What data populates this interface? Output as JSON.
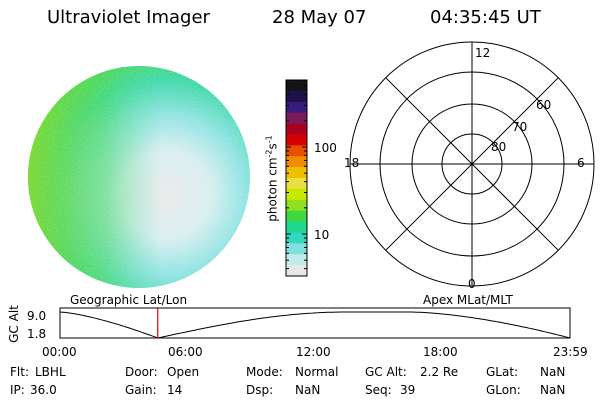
{
  "header": {
    "instrument": "Ultraviolet Imager",
    "date": "28 May 07",
    "time": "04:35:45 UT"
  },
  "colorbar": {
    "unit_label": "photon cm",
    "unit_sup1": "-2",
    "unit_mid": "s",
    "unit_sup2": "-1",
    "ticks": [
      {
        "value": 100,
        "label": "100"
      },
      {
        "value": 10,
        "label": "10"
      }
    ],
    "colors_top_to_bottom": [
      "#141414",
      "#1e1048",
      "#3a1a7a",
      "#7a1a5a",
      "#a80020",
      "#d40000",
      "#e85000",
      "#f08c00",
      "#f0c000",
      "#e8e040",
      "#c8e800",
      "#90e020",
      "#40d840",
      "#20d890",
      "#30d8c0",
      "#80e0e0",
      "#c0ecec",
      "#e8e8e8"
    ]
  },
  "polar": {
    "mlt_labels": {
      "top": "12",
      "left": "18",
      "right": "6",
      "bottom": "0"
    },
    "mlat_labels": [
      "60",
      "70",
      "80"
    ]
  },
  "timeline": {
    "left_title": "Geographic Lat/Lon",
    "right_title": "Apex MLat/MLT",
    "y_axis_label": "GC Alt",
    "y_max_label": "9.0",
    "y_min_label": "1.8",
    "x_ticks": [
      "00:00",
      "06:00",
      "12:00",
      "18:00",
      "23:59"
    ],
    "current_time_hours": 4.6
  },
  "footer": {
    "flt": {
      "label": "Flt:",
      "value": "LBHL"
    },
    "ip": {
      "label": "IP:",
      "value": "36.0"
    },
    "door": {
      "label": "Door:",
      "value": "Open"
    },
    "gain": {
      "label": "Gain:",
      "value": "14"
    },
    "mode": {
      "label": "Mode:",
      "value": "Normal"
    },
    "dsp": {
      "label": "Dsp:",
      "value": "NaN"
    },
    "gcalt": {
      "label": "GC Alt:",
      "value": "2.2 Re"
    },
    "seq": {
      "label": "Seq:",
      "value": "39"
    },
    "glat": {
      "label": "GLat:",
      "value": "NaN"
    },
    "glon": {
      "label": "GLon:",
      "value": "NaN"
    }
  },
  "colors": {
    "marker": "#e00000",
    "line": "#000000"
  }
}
